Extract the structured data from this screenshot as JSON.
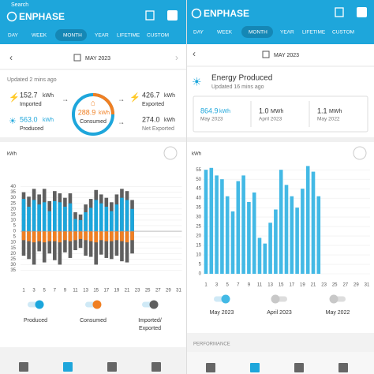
{
  "left": {
    "status": "Search",
    "logo": "ENPHASE",
    "tabs": [
      "DAY",
      "WEEK",
      "MONTH",
      "YEAR",
      "LIFETIME",
      "CUSTOM"
    ],
    "date": "MAY 2023",
    "updated": "Updated 2 mins ago",
    "imported": {
      "value": "152.7",
      "unit": "kWh",
      "label": "Imported"
    },
    "exported": {
      "value": "426.7",
      "unit": "kWh",
      "label": "Exported"
    },
    "produced": {
      "value": "563.0",
      "unit": "kWh",
      "label": "Produced"
    },
    "consumed": {
      "value": "288.9",
      "unit": "kWh",
      "label": "Consumed"
    },
    "net": {
      "value": "274.0",
      "unit": "kWh",
      "label": "Net Exported"
    }
  },
  "right": {
    "logo": "ENPHASE",
    "tabs": [
      "DAY",
      "WEEK",
      "MONTH",
      "YEAR",
      "LIFETIME",
      "CUSTOM"
    ],
    "date": "MAY 2023",
    "title": "Energy Produced",
    "updated": "Updated 16 mins ago",
    "stats": [
      {
        "value": "864.9",
        "unit": "kWh",
        "period": "May 2023"
      },
      {
        "value": "1.0",
        "unit": "MWh",
        "period": "April 2023"
      },
      {
        "value": "1.1",
        "unit": "MWh",
        "period": "May 2022"
      }
    ],
    "section": "PERFORMANCE"
  },
  "chart_data": [
    {
      "type": "bar",
      "y_label": "kWh",
      "categories": [
        "1",
        null,
        "3",
        null,
        "5",
        null,
        "7",
        null,
        "9",
        null,
        "11",
        null,
        "13",
        null,
        "15",
        null,
        "17",
        null,
        "19",
        null,
        "21",
        null,
        "23",
        null,
        "25",
        null,
        "27",
        null,
        "29",
        null,
        "31"
      ],
      "ylim": [
        -37.5,
        42.5
      ],
      "yticks": [
        40,
        35,
        30,
        25,
        20,
        15,
        10,
        5,
        0,
        {
          "value": -5,
          "label": "5"
        },
        {
          "value": -10,
          "label": "10"
        },
        {
          "value": -15,
          "label": "15"
        },
        {
          "value": -20,
          "label": "20"
        },
        {
          "value": -25,
          "label": "25"
        },
        {
          "value": -30,
          "label": "30"
        },
        {
          "value": -35,
          "label": "35"
        }
      ],
      "series": [
        {
          "name": "Imported/Exported",
          "color": "#5f5f5f",
          "values": [
            35,
            31,
            38,
            33,
            38,
            27,
            36,
            34,
            30,
            34,
            17,
            15,
            24,
            29,
            37,
            33,
            30,
            26,
            33,
            38,
            36,
            28,
            null,
            null,
            null,
            null,
            null,
            null,
            null,
            null,
            null
          ],
          "values_below": [
            -22,
            -25,
            -30,
            -18,
            -28,
            -20,
            -26,
            -30,
            -19,
            -24,
            -17,
            -15,
            -22,
            -23,
            -30,
            -21,
            -24,
            -25,
            -22,
            -27,
            -28,
            -20,
            null,
            null,
            null,
            null,
            null,
            null,
            null,
            null,
            null
          ]
        },
        {
          "name": "Produced",
          "color": "#1ba6dc",
          "values": [
            29,
            22,
            28,
            24,
            26,
            18,
            27,
            26,
            22,
            25,
            11,
            10,
            17,
            21,
            28,
            25,
            22,
            18,
            24,
            30,
            28,
            20,
            null,
            null,
            null,
            null,
            null,
            null,
            null,
            null,
            null
          ]
        },
        {
          "name": "Consumed",
          "color": "#f07f22",
          "values": [
            -8,
            -9,
            -10,
            -9,
            -10,
            -9,
            -9,
            -10,
            -8,
            -9,
            -8,
            -7,
            -8,
            -9,
            -10,
            -8,
            -9,
            -9,
            -8,
            -9,
            -10,
            -8,
            null,
            null,
            null,
            null,
            null,
            null,
            null,
            null,
            null
          ]
        }
      ]
    },
    {
      "type": "bar",
      "y_label": "kWh",
      "categories": [
        "1",
        null,
        "3",
        null,
        "5",
        null,
        "7",
        null,
        "9",
        null,
        "11",
        null,
        "13",
        null,
        "15",
        null,
        "17",
        null,
        "19",
        null,
        "21",
        null,
        "23",
        null,
        "25",
        null,
        "27",
        null,
        "29",
        null,
        "31"
      ],
      "ylim": [
        0,
        58
      ],
      "yticks": [
        0,
        5,
        10,
        15,
        20,
        25,
        30,
        35,
        40,
        45,
        50,
        55
      ],
      "series": [
        {
          "name": "May 2023",
          "color": "#43b9e5",
          "values": [
            55,
            56,
            52,
            50,
            41,
            33,
            49,
            52,
            38,
            43,
            19,
            16,
            27,
            34,
            55,
            47,
            41,
            35,
            45,
            57,
            54,
            41,
            null,
            null,
            null,
            null,
            null,
            null,
            null,
            null,
            null
          ]
        }
      ],
      "comparisons": [
        "April 2023",
        "May 2022"
      ]
    }
  ]
}
